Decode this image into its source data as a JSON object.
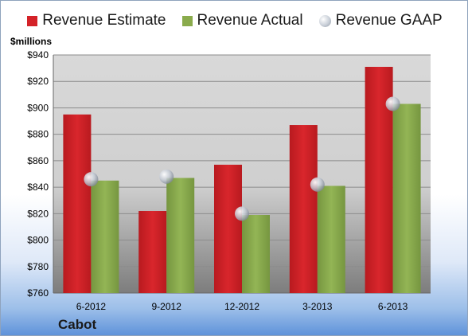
{
  "legend": {
    "estimate": "Revenue Estimate",
    "actual": "Revenue Actual",
    "gaap": "Revenue GAAP"
  },
  "units_label": "$millions",
  "company": "Cabot",
  "colors": {
    "estimate": "#d42228",
    "actual": "#8aab4c",
    "gaap": "#c9cfd8"
  },
  "chart_data": {
    "type": "bar",
    "categories": [
      "6-2012",
      "9-2012",
      "12-2012",
      "3-2013",
      "6-2013"
    ],
    "series": [
      {
        "name": "Revenue Estimate",
        "values": [
          895,
          822,
          857,
          887,
          931
        ]
      },
      {
        "name": "Revenue Actual",
        "values": [
          845,
          847,
          819,
          841,
          903
        ]
      },
      {
        "name": "Revenue GAAP",
        "values": [
          846,
          848,
          820,
          842,
          903
        ]
      }
    ],
    "ylabel": "$millions",
    "ylim": [
      760,
      940
    ],
    "yticks": [
      "$760",
      "$780",
      "$800",
      "$820",
      "$840",
      "$860",
      "$880",
      "$900",
      "$920",
      "$940"
    ],
    "yticks_values": [
      760,
      780,
      800,
      820,
      840,
      860,
      880,
      900,
      920,
      940
    ],
    "grid": true,
    "legend_position": "top"
  }
}
